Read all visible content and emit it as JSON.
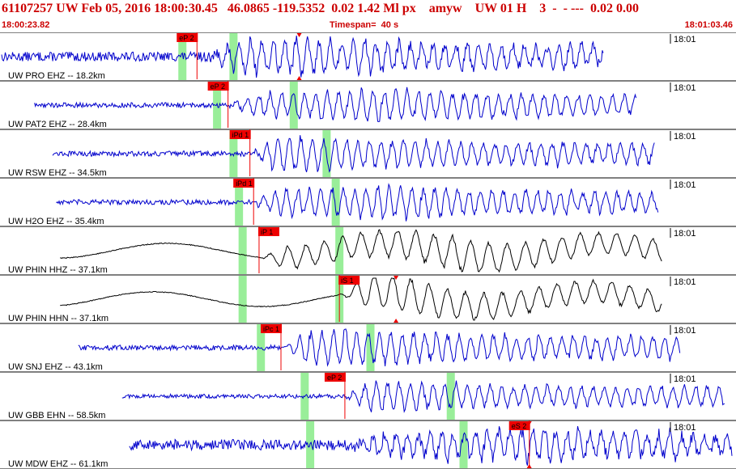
{
  "header": {
    "event_id": "61107257",
    "network": "UW",
    "date": "Feb 05, 2016",
    "origin_time": "18:00:30.45",
    "lat": "46.0865",
    "lon": "-119.5352",
    "depth": "0.02",
    "magnitude": "1.42",
    "mag_type": "Ml",
    "event_type": "px",
    "analyst": "amyw",
    "source": "UW",
    "version": "01",
    "quality": "H",
    "count": "3",
    "dashes": "-  -  ---",
    "rms": "0.02",
    "err": "0.00"
  },
  "title_text": "61107257 UW Feb 05, 2016 18:00:30.45   46.0865 -119.5352  0.02 1.42 Ml px    amyw    UW 01 H    3  -  - ---  0.02 0.00",
  "start_time": "18:00:23.82",
  "timespan": "Timespan=  40 s",
  "end_time": "18:01:03.46",
  "colors": {
    "title": "#cc0000",
    "trace_ehz": "#0000cc",
    "trace_hh": "#000000",
    "pick_box": "#ee0000",
    "pick_line": "#ee0000",
    "predicted": "#99ee99",
    "separator": "#000000"
  },
  "chart_data": {
    "type": "line",
    "x_range": [
      "18:00:23.82",
      "18:01:03.46"
    ],
    "timespan_s": 40,
    "traces": [
      {
        "label": "UW PRO EHZ -- 18.2km",
        "minute_label": "18:01",
        "color": "#0000cc",
        "data_start": 0.0,
        "data_end": 33.0,
        "amp": 0.22,
        "onset": 11.3,
        "peak_amp": 0.95,
        "peak_t": 16.3,
        "green": [
          9.9,
          12.7
        ],
        "picks": [
          {
            "label": "eP 2",
            "t": 10.7,
            "box_side": "left",
            "marker": false
          },
          {
            "label": "",
            "t": 16.3,
            "box_side": "none",
            "marker": true
          }
        ]
      },
      {
        "label": "UW PAT2 EHZ -- 28.4km",
        "minute_label": "18:01",
        "color": "#0000cc",
        "data_start": 1.8,
        "data_end": 34.8,
        "amp": 0.12,
        "onset": 12.4,
        "peak_amp": 0.85,
        "peak_t": 21.5,
        "green": [
          11.8,
          16.0
        ],
        "picks": [
          {
            "label": "eP 2",
            "t": 12.4,
            "box_side": "left",
            "marker": false
          }
        ]
      },
      {
        "label": "UW RSW EHZ -- 34.5km",
        "minute_label": "18:01",
        "color": "#0000cc",
        "data_start": 2.8,
        "data_end": 35.8,
        "amp": 0.12,
        "onset": 13.6,
        "peak_amp": 0.95,
        "peak_t": 15.0,
        "green": [
          12.7,
          17.8
        ],
        "picks": [
          {
            "label": "iPd 1",
            "t": 13.6,
            "box_side": "left",
            "marker": false
          }
        ]
      },
      {
        "label": "UW H2O EHZ -- 35.4km",
        "minute_label": "18:01",
        "color": "#0000cc",
        "data_start": 3.0,
        "data_end": 36.0,
        "amp": 0.12,
        "onset": 13.6,
        "peak_amp": 0.85,
        "peak_t": 21.0,
        "green": [
          13.0,
          18.3
        ],
        "picks": [
          {
            "label": "iPd 1",
            "t": 13.8,
            "box_side": "left",
            "marker": false
          }
        ]
      },
      {
        "label": "UW PHIN HHZ -- 37.1km",
        "minute_label": "18:01",
        "color": "#000000",
        "data_start": 3.2,
        "data_end": 36.2,
        "amp": 0.0,
        "onset": 14.1,
        "peak_amp": 0.9,
        "peak_t": 25.0,
        "green": [
          13.2,
          18.5
        ],
        "picks": [
          {
            "label": "iP 1",
            "t": 14.1,
            "box_side": "right",
            "marker": false
          }
        ]
      },
      {
        "label": "UW PHIN HHN -- 37.1km",
        "minute_label": "18:01",
        "color": "#000000",
        "data_start": 3.2,
        "data_end": 36.2,
        "amp": 0.0,
        "onset": 18.5,
        "peak_amp": 0.95,
        "peak_t": 21.6,
        "green": [
          13.2,
          18.5
        ],
        "picks": [
          {
            "label": "iS 1",
            "t": 18.5,
            "box_side": "right",
            "marker": false
          },
          {
            "label": "",
            "t": 21.6,
            "box_side": "none",
            "marker": true
          }
        ]
      },
      {
        "label": "UW SNJ EHZ -- 43.1km",
        "minute_label": "18:01",
        "color": "#0000cc",
        "data_start": 4.2,
        "data_end": 37.2,
        "amp": 0.12,
        "onset": 15.3,
        "peak_amp": 0.95,
        "peak_t": 18.7,
        "green": [
          14.2,
          20.2
        ],
        "picks": [
          {
            "label": "iPc 1",
            "t": 15.3,
            "box_side": "left",
            "marker": false
          }
        ]
      },
      {
        "label": "UW GBB EHN -- 58.5km",
        "minute_label": "18:01",
        "color": "#0000cc",
        "data_start": 6.6,
        "data_end": 39.6,
        "amp": 0.1,
        "onset": 18.8,
        "peak_amp": 0.85,
        "peak_t": 18.9,
        "green": [
          16.6,
          24.6
        ],
        "picks": [
          {
            "label": "eP 2",
            "t": 18.8,
            "box_side": "left",
            "marker": false
          }
        ]
      },
      {
        "label": "UW MDW EHZ -- 61.1km",
        "minute_label": "18:01",
        "color": "#0000cc",
        "data_start": 7.0,
        "data_end": 40.0,
        "amp": 0.25,
        "onset": 19.0,
        "peak_amp": 0.85,
        "peak_t": 28.9,
        "green": [
          16.9,
          25.3
        ],
        "picks": [
          {
            "label": "eS 2",
            "t": 28.9,
            "box_side": "left",
            "marker": true
          }
        ]
      }
    ]
  }
}
